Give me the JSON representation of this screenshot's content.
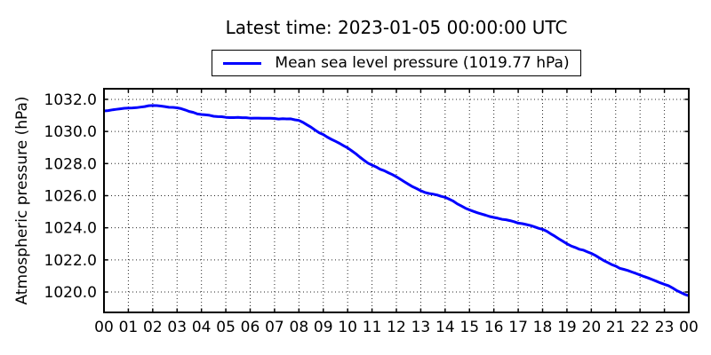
{
  "chart_data": {
    "type": "line",
    "title": "Latest time: 2023-01-05 00:00:00 UTC",
    "ylabel": "Atmospheric pressure (hPa)",
    "xlabel": "",
    "x_tick_labels": [
      "00",
      "01",
      "02",
      "03",
      "04",
      "05",
      "06",
      "07",
      "08",
      "09",
      "10",
      "11",
      "12",
      "13",
      "14",
      "15",
      "16",
      "17",
      "18",
      "19",
      "20",
      "21",
      "22",
      "23",
      "00"
    ],
    "yticks": [
      1020.0,
      1022.0,
      1024.0,
      1026.0,
      1028.0,
      1030.0,
      1032.0
    ],
    "xlim": [
      0,
      24
    ],
    "ylim": [
      1018.73,
      1032.66
    ],
    "grid": "dotted black, on both axes",
    "legend_position": "upper center, above plot",
    "latest_value_hpa": 1019.77,
    "series": [
      {
        "name": "Mean sea level pressure (1019.77 hPa)",
        "color": "#0000ff",
        "x_hours": [
          0,
          1,
          2,
          3,
          4,
          5,
          6,
          7,
          8,
          9,
          10,
          11,
          12,
          13,
          14,
          15,
          16,
          17,
          18,
          19,
          20,
          21,
          22,
          23,
          24
        ],
        "values": [
          1031.28,
          1031.45,
          1031.6,
          1031.45,
          1031.05,
          1030.9,
          1030.85,
          1030.78,
          1030.67,
          1029.8,
          1028.95,
          1027.9,
          1027.2,
          1026.3,
          1025.9,
          1025.1,
          1024.67,
          1024.3,
          1023.9,
          1023.0,
          1022.4,
          1021.6,
          1021.05,
          1020.5,
          1019.77
        ]
      }
    ],
    "style": {
      "background": "#ffffff",
      "line_color": "#0000ff",
      "axis_color": "#000000",
      "grid_color": "#000000",
      "tick_direction": "in",
      "noise_amplitude_hpa": 0.05
    }
  }
}
